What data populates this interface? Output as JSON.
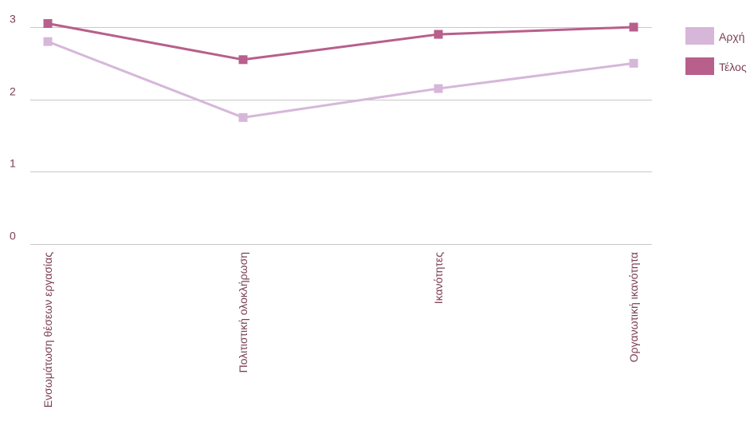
{
  "chart_data": {
    "type": "line",
    "categories": [
      "Ενσωμάτωση θέσεων εργασίας",
      "Πολιτιστική ολοκλήρωση",
      "Ικανότητες",
      "Οργανωτική ικανότητα"
    ],
    "series": [
      {
        "name": "Αρχή",
        "values": [
          2.8,
          1.75,
          2.15,
          2.5
        ],
        "color": "#d6b7d9"
      },
      {
        "name": "Τέλος",
        "values": [
          3.05,
          2.55,
          2.9,
          3.0
        ],
        "color": "#b85f8b"
      }
    ],
    "yticks": [
      "0",
      "1",
      "2",
      "3"
    ],
    "ylim": [
      0,
      3
    ],
    "grid": true,
    "legend_position": "right",
    "title": "",
    "xlabel": "",
    "ylabel": ""
  }
}
